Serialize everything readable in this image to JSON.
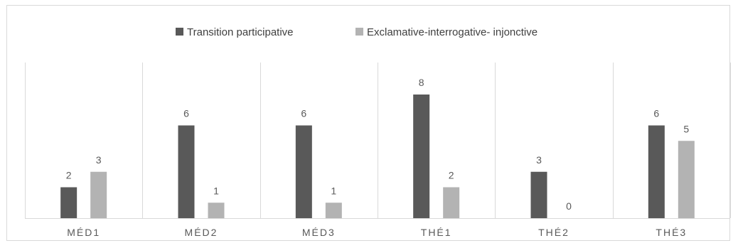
{
  "chart_data": {
    "type": "bar",
    "categories": [
      "MÉD1",
      "MÉD2",
      "MÉD3",
      "THÉ1",
      "THÉ2",
      "THÉ3"
    ],
    "series": [
      {
        "name": "Transition participative",
        "values": [
          2,
          6,
          6,
          8,
          3,
          6
        ],
        "color": "#595959"
      },
      {
        "name": "Exclamative-interrogative- injonctive",
        "values": [
          3,
          1,
          1,
          2,
          0,
          5
        ],
        "color": "#b3b3b3"
      }
    ],
    "ylim": [
      0,
      8
    ],
    "grid": "vertical category separators",
    "legend_position": "top-center",
    "data_labels": true
  }
}
